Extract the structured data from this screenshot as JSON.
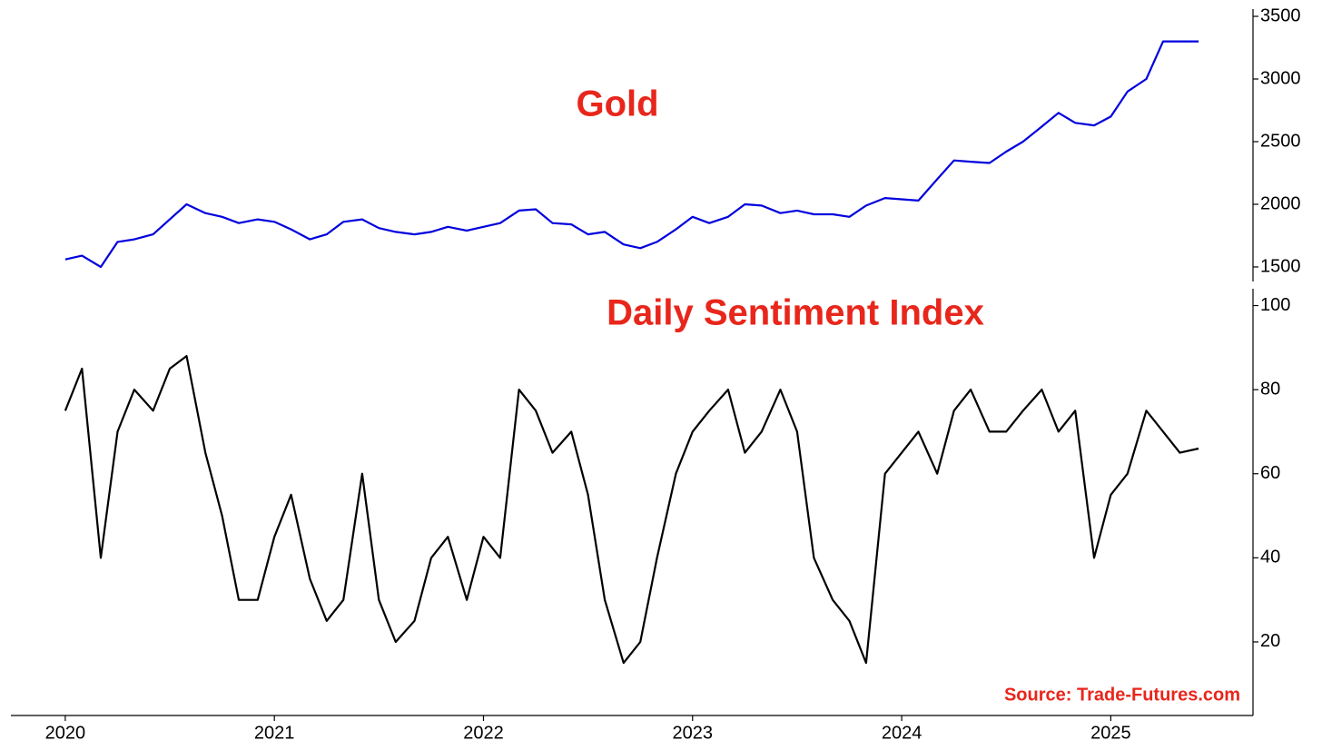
{
  "chart_data": [
    {
      "type": "line",
      "title": "Gold",
      "color": "#0000dd",
      "x": [
        2020,
        2020.08,
        2020.17,
        2020.25,
        2020.33,
        2020.42,
        2020.5,
        2020.58,
        2020.67,
        2020.75,
        2020.83,
        2020.92,
        2021,
        2021.08,
        2021.17,
        2021.25,
        2021.33,
        2021.42,
        2021.5,
        2021.58,
        2021.67,
        2021.75,
        2021.83,
        2021.92,
        2022,
        2022.08,
        2022.17,
        2022.25,
        2022.33,
        2022.42,
        2022.5,
        2022.58,
        2022.67,
        2022.75,
        2022.83,
        2022.92,
        2023,
        2023.08,
        2023.17,
        2023.25,
        2023.33,
        2023.42,
        2023.5,
        2023.58,
        2023.67,
        2023.75,
        2023.83,
        2023.92,
        2024,
        2024.08,
        2024.17,
        2024.25,
        2024.33,
        2024.42,
        2024.5,
        2024.58,
        2024.67,
        2024.75,
        2024.83,
        2024.92,
        2025,
        2025.08,
        2025.17,
        2025.25,
        2025.33,
        2025.42
      ],
      "values": [
        1560,
        1590,
        1500,
        1700,
        1720,
        1760,
        1880,
        2000,
        1930,
        1900,
        1850,
        1880,
        1860,
        1800,
        1720,
        1760,
        1860,
        1880,
        1810,
        1780,
        1760,
        1780,
        1820,
        1790,
        1820,
        1850,
        1950,
        1960,
        1850,
        1840,
        1760,
        1780,
        1680,
        1650,
        1700,
        1800,
        1900,
        1850,
        1900,
        2000,
        1990,
        1930,
        1950,
        1920,
        1920,
        1900,
        1990,
        2050,
        2040,
        2030,
        2200,
        2350,
        2340,
        2330,
        2420,
        2500,
        2620,
        2730,
        2650,
        2630,
        2700,
        2900,
        3000,
        3300,
        3300,
        3300
      ],
      "xlim": [
        2019.74,
        2025.68
      ],
      "ylim": [
        1384,
        3558
      ],
      "yticks": [
        1500,
        2000,
        2500,
        3000,
        3500
      ]
    },
    {
      "type": "line",
      "title": "Daily Sentiment Index",
      "color": "#000000",
      "annotation": "Source: Trade-Futures.com",
      "x": [
        2020,
        2020.08,
        2020.17,
        2020.25,
        2020.33,
        2020.42,
        2020.5,
        2020.58,
        2020.67,
        2020.75,
        2020.83,
        2020.92,
        2021,
        2021.08,
        2021.17,
        2021.25,
        2021.33,
        2021.42,
        2021.5,
        2021.58,
        2021.67,
        2021.75,
        2021.83,
        2021.92,
        2022,
        2022.08,
        2022.17,
        2022.25,
        2022.33,
        2022.42,
        2022.5,
        2022.58,
        2022.67,
        2022.75,
        2022.83,
        2022.92,
        2023,
        2023.08,
        2023.17,
        2023.25,
        2023.33,
        2023.42,
        2023.5,
        2023.58,
        2023.67,
        2023.75,
        2023.83,
        2023.92,
        2024,
        2024.08,
        2024.17,
        2024.25,
        2024.33,
        2024.42,
        2024.5,
        2024.58,
        2024.67,
        2024.75,
        2024.83,
        2024.92,
        2025,
        2025.08,
        2025.17,
        2025.25,
        2025.33,
        2025.42
      ],
      "values": [
        75,
        85,
        40,
        70,
        80,
        75,
        85,
        88,
        65,
        50,
        30,
        30,
        45,
        55,
        35,
        25,
        30,
        60,
        30,
        20,
        25,
        40,
        45,
        30,
        45,
        40,
        80,
        75,
        65,
        70,
        55,
        30,
        15,
        20,
        40,
        60,
        70,
        75,
        80,
        65,
        70,
        80,
        70,
        40,
        30,
        25,
        15,
        60,
        65,
        70,
        60,
        75,
        80,
        70,
        70,
        75,
        80,
        70,
        75,
        40,
        55,
        60,
        75,
        70,
        65,
        66
      ],
      "xlim": [
        2019.74,
        2025.68
      ],
      "ylim": [
        2.5,
        104
      ],
      "yticks": [
        20,
        40,
        60,
        80,
        100
      ],
      "xticks": [
        2020,
        2021,
        2022,
        2023,
        2024,
        2025
      ]
    }
  ]
}
